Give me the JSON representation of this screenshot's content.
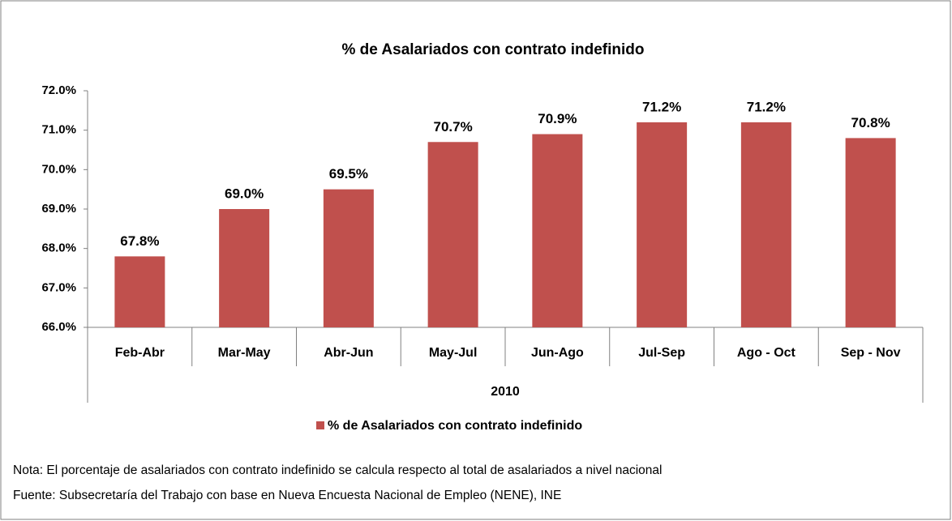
{
  "chart_data": {
    "type": "bar",
    "title": "% de Asalariados con contrato indefinido",
    "categories": [
      "Feb-Abr",
      "Mar-May",
      "Abr-Jun",
      "May-Jul",
      "Jun-Ago",
      "Jul-Sep",
      "Ago - Oct",
      "Sep - Nov"
    ],
    "group_label": "2010",
    "series": [
      {
        "name": "% de Asalariados con contrato indefinido",
        "color": "#c0504d",
        "values": [
          67.8,
          69.0,
          69.5,
          70.7,
          70.9,
          71.2,
          71.2,
          70.8
        ],
        "value_labels": [
          "67.8%",
          "69.0%",
          "69.5%",
          "70.7%",
          "70.9%",
          "71.2%",
          "71.2%",
          "70.8%"
        ]
      }
    ],
    "ylim": [
      66,
      72
    ],
    "yticks": [
      {
        "value": 66,
        "label": "66.0%"
      },
      {
        "value": 67,
        "label": "67.0%"
      },
      {
        "value": 68,
        "label": "68.0%"
      },
      {
        "value": 69,
        "label": "69.0%"
      },
      {
        "value": 70,
        "label": "70.0%"
      },
      {
        "value": 71,
        "label": "71.0%"
      },
      {
        "value": 72,
        "label": "72.0%"
      }
    ],
    "legend": "bottom",
    "note": "Nota: El porcentaje de asalariados con contrato indefinido se calcula respecto al total de asalariados a nivel nacional",
    "source": "Fuente: Subsecretaría del Trabajo con base en Nueva Encuesta Nacional de Empleo (NENE), INE"
  }
}
